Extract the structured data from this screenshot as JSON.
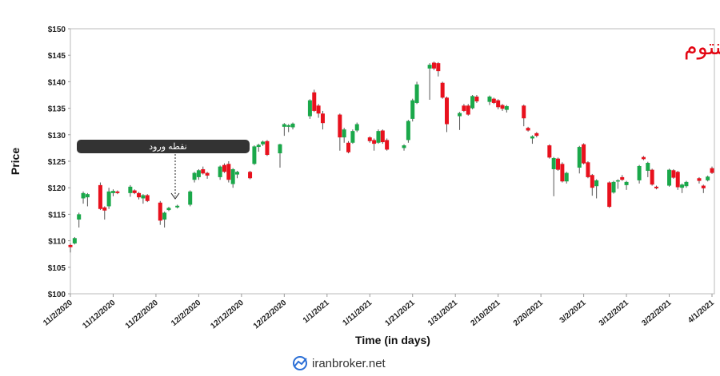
{
  "chart_data": {
    "type": "candlestick",
    "title": "استراتژی مومنتوم",
    "x_label": "Time (in days)",
    "y_label": "Price",
    "annotation": "نقطه ورود",
    "watermark": "iranbroker.net",
    "up_color": "#1aa84a",
    "down_color": "#e8111d",
    "xlim": [
      "2020-11-02",
      "2021-04-01"
    ],
    "xticks": [
      {
        "value": "2020-11-02",
        "label": "11/2/2020"
      },
      {
        "value": "2020-11-12",
        "label": "11/12/2020"
      },
      {
        "value": "2020-11-22",
        "label": "11/22/2020"
      },
      {
        "value": "2020-12-02",
        "label": "12/2/2020"
      },
      {
        "value": "2020-12-12",
        "label": "12/12/2020"
      },
      {
        "value": "2020-12-22",
        "label": "12/22/2020"
      },
      {
        "value": "2021-01-01",
        "label": "1/1/2021"
      },
      {
        "value": "2021-01-11",
        "label": "1/11/2021"
      },
      {
        "value": "2021-01-21",
        "label": "1/21/2021"
      },
      {
        "value": "2021-01-31",
        "label": "1/31/2021"
      },
      {
        "value": "2021-02-10",
        "label": "2/10/2021"
      },
      {
        "value": "2021-02-20",
        "label": "2/20/2021"
      },
      {
        "value": "2021-03-02",
        "label": "3/2/2021"
      },
      {
        "value": "2021-03-12",
        "label": "3/12/2021"
      },
      {
        "value": "2021-03-22",
        "label": "3/22/2021"
      },
      {
        "value": "2021-04-01",
        "label": "4/1/2021"
      }
    ],
    "ylim": [
      100,
      150
    ],
    "yticks": [
      {
        "value": 100,
        "label": "$100"
      },
      {
        "value": 105,
        "label": "$105"
      },
      {
        "value": 110,
        "label": "$110"
      },
      {
        "value": 115,
        "label": "$115"
      },
      {
        "value": 120,
        "label": "$120"
      },
      {
        "value": 125,
        "label": "$125"
      },
      {
        "value": 130,
        "label": "$130"
      },
      {
        "value": 135,
        "label": "$135"
      },
      {
        "value": 140,
        "label": "$140"
      },
      {
        "value": 145,
        "label": "$145"
      },
      {
        "value": 150,
        "label": "$150"
      }
    ],
    "x": [
      "2020-11-02",
      "2020-11-03",
      "2020-11-04",
      "2020-11-05",
      "2020-11-06",
      "2020-11-09",
      "2020-11-10",
      "2020-11-11",
      "2020-11-12",
      "2020-11-13",
      "2020-11-16",
      "2020-11-17",
      "2020-11-18",
      "2020-11-19",
      "2020-11-20",
      "2020-11-23",
      "2020-11-24",
      "2020-11-25",
      "2020-11-27",
      "2020-11-30",
      "2020-12-01",
      "2020-12-02",
      "2020-12-03",
      "2020-12-04",
      "2020-12-07",
      "2020-12-08",
      "2020-12-09",
      "2020-12-10",
      "2020-12-11",
      "2020-12-14",
      "2020-12-15",
      "2020-12-16",
      "2020-12-17",
      "2020-12-18",
      "2020-12-21",
      "2020-12-22",
      "2020-12-23",
      "2020-12-24",
      "2020-12-28",
      "2020-12-29",
      "2020-12-30",
      "2020-12-31",
      "2021-01-04",
      "2021-01-05",
      "2021-01-06",
      "2021-01-07",
      "2021-01-08",
      "2021-01-11",
      "2021-01-12",
      "2021-01-13",
      "2021-01-14",
      "2021-01-15",
      "2021-01-19",
      "2021-01-20",
      "2021-01-21",
      "2021-01-22",
      "2021-01-25",
      "2021-01-26",
      "2021-01-27",
      "2021-01-28",
      "2021-01-29",
      "2021-02-01",
      "2021-02-02",
      "2021-02-03",
      "2021-02-04",
      "2021-02-05",
      "2021-02-08",
      "2021-02-09",
      "2021-02-10",
      "2021-02-11",
      "2021-02-12",
      "2021-02-16",
      "2021-02-17",
      "2021-02-18",
      "2021-02-19",
      "2021-02-22",
      "2021-02-23",
      "2021-02-24",
      "2021-02-25",
      "2021-02-26",
      "2021-03-01",
      "2021-03-02",
      "2021-03-03",
      "2021-03-04",
      "2021-03-05",
      "2021-03-08",
      "2021-03-09",
      "2021-03-10",
      "2021-03-11",
      "2021-03-12",
      "2021-03-15",
      "2021-03-16",
      "2021-03-17",
      "2021-03-18",
      "2021-03-19",
      "2021-03-22",
      "2021-03-23",
      "2021-03-24",
      "2021-03-25",
      "2021-03-26",
      "2021-03-29",
      "2021-03-30",
      "2021-03-31",
      "2021-04-01"
    ],
    "open": [
      109.2,
      109.5,
      114.0,
      118.0,
      118.2,
      120.5,
      116.3,
      116.5,
      119.0,
      119.3,
      119.0,
      119.5,
      119.0,
      118.0,
      118.6,
      117.2,
      114.0,
      115.8,
      116.3,
      116.8,
      121.5,
      122.0,
      123.5,
      122.8,
      122.0,
      124.3,
      124.5,
      120.7,
      122.5,
      123.0,
      124.5,
      127.7,
      128.2,
      128.8,
      126.5,
      131.5,
      131.5,
      131.4,
      133.5,
      138.0,
      135.5,
      134.0,
      133.8,
      129.5,
      128.5,
      128.5,
      130.8,
      129.5,
      129.0,
      128.5,
      130.8,
      129.0,
      127.5,
      129.0,
      133.0,
      136.0,
      142.5,
      143.6,
      143.5,
      139.8,
      137.0,
      133.5,
      135.5,
      135.5,
      135.0,
      137.2,
      136.2,
      136.8,
      136.5,
      135.6,
      134.7,
      135.5,
      131.3,
      129.3,
      130.3,
      128.0,
      123.5,
      125.5,
      124.5,
      121.2,
      123.8,
      128.2,
      124.8,
      122.4,
      120.3,
      121.0,
      119.1,
      121.2,
      122.0,
      120.5,
      121.4,
      125.8,
      123.2,
      123.4,
      120.2,
      120.4,
      123.3,
      123.0,
      120.0,
      120.3,
      121.8,
      120.4,
      121.4,
      123.7
    ],
    "high": [
      109.5,
      110.7,
      115.3,
      119.3,
      119.0,
      121.0,
      116.5,
      120.0,
      119.7,
      119.5,
      120.5,
      119.7,
      119.2,
      118.8,
      118.8,
      117.5,
      115.5,
      116.4,
      116.8,
      119.5,
      123.0,
      123.5,
      124.0,
      123.0,
      124.2,
      124.6,
      125.0,
      123.7,
      123.2,
      123.2,
      128.0,
      128.3,
      128.9,
      129.0,
      128.3,
      132.2,
      132.0,
      132.3,
      136.7,
      138.5,
      135.8,
      134.5,
      134.0,
      131.3,
      128.8,
      131.0,
      132.3,
      129.7,
      129.3,
      131.0,
      131.0,
      129.3,
      128.2,
      132.8,
      136.8,
      140.0,
      143.5,
      143.8,
      143.7,
      140.0,
      137.2,
      134.3,
      135.8,
      135.8,
      137.5,
      137.5,
      137.4,
      137.0,
      136.7,
      135.8,
      135.6,
      135.7,
      131.5,
      129.9,
      130.5,
      128.2,
      125.8,
      125.7,
      124.8,
      123.0,
      127.9,
      128.4,
      125.0,
      122.6,
      121.6,
      121.2,
      121.3,
      121.6,
      122.4,
      121.3,
      124.3,
      126.0,
      124.9,
      123.6,
      120.4,
      123.6,
      123.5,
      123.2,
      120.8,
      121.3,
      122.0,
      120.6,
      122.3,
      124.0
    ],
    "low": [
      107.8,
      109.3,
      112.5,
      117.0,
      116.5,
      115.8,
      114.0,
      116.0,
      118.4,
      118.8,
      118.3,
      118.8,
      117.8,
      117.0,
      117.3,
      113.0,
      112.5,
      115.6,
      116.1,
      116.5,
      121.0,
      121.5,
      122.5,
      121.7,
      121.5,
      122.8,
      121.0,
      120.0,
      121.8,
      121.6,
      124.3,
      126.8,
      127.9,
      126.0,
      123.8,
      129.8,
      130.5,
      131.0,
      133.0,
      134.3,
      133.2,
      131.0,
      127.0,
      128.5,
      126.5,
      128.3,
      130.5,
      128.5,
      127.0,
      128.3,
      128.3,
      127.0,
      127.0,
      128.5,
      132.5,
      135.8,
      136.6,
      142.2,
      141.0,
      136.8,
      130.5,
      130.9,
      134.3,
      133.6,
      134.8,
      136.0,
      135.6,
      135.8,
      134.8,
      134.5,
      134.2,
      131.6,
      130.6,
      128.3,
      129.5,
      125.5,
      118.4,
      123.2,
      121.0,
      120.8,
      122.7,
      124.4,
      121.8,
      118.5,
      118.0,
      116.2,
      118.9,
      119.8,
      121.3,
      119.6,
      120.8,
      125.2,
      122.0,
      120.4,
      119.7,
      120.2,
      121.7,
      119.6,
      119.0,
      120.0,
      120.8,
      119.0,
      121.2,
      122.6
    ],
    "close": [
      108.8,
      110.5,
      115.0,
      119.0,
      118.8,
      116.0,
      115.7,
      119.3,
      119.4,
      119.0,
      120.2,
      119.0,
      118.2,
      118.6,
      117.5,
      113.8,
      115.3,
      116.2,
      116.6,
      119.3,
      122.8,
      123.3,
      122.7,
      122.3,
      124.0,
      123.0,
      121.5,
      123.5,
      123.0,
      121.8,
      127.8,
      128.1,
      128.7,
      126.2,
      128.2,
      132.0,
      131.8,
      132.1,
      136.5,
      134.5,
      134.0,
      132.2,
      129.5,
      131.0,
      126.7,
      130.7,
      132.0,
      128.8,
      128.3,
      130.7,
      128.6,
      127.2,
      128.0,
      132.6,
      136.5,
      139.5,
      143.2,
      142.5,
      142.0,
      137.0,
      132.0,
      134.1,
      134.5,
      133.8,
      137.3,
      136.3,
      137.2,
      136.0,
      135.2,
      134.9,
      135.4,
      133.1,
      130.8,
      129.7,
      129.8,
      125.7,
      125.6,
      123.4,
      121.2,
      122.8,
      127.7,
      124.6,
      122.0,
      120.0,
      121.4,
      116.4,
      121.1,
      121.4,
      121.5,
      121.1,
      124.1,
      125.4,
      124.7,
      120.6,
      119.9,
      123.4,
      121.9,
      120.1,
      120.6,
      121.1,
      121.3,
      119.9,
      122.1,
      122.8
    ]
  }
}
